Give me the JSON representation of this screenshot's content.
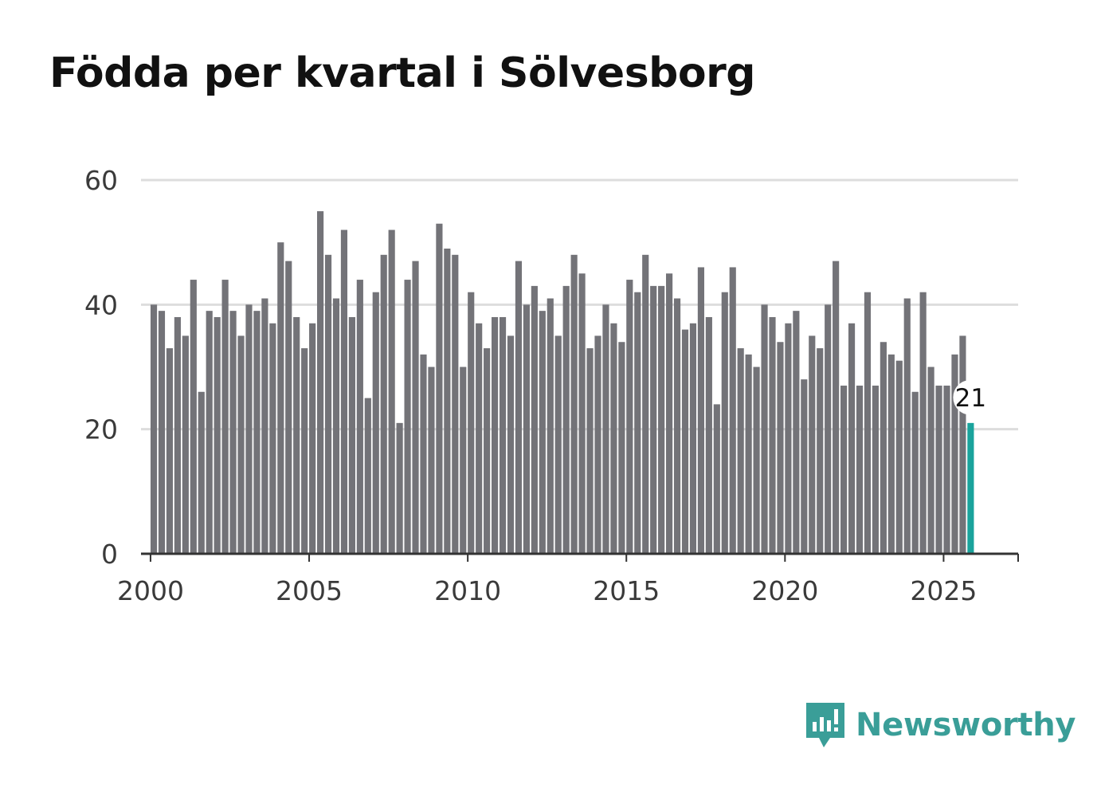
{
  "chart_data": {
    "type": "bar",
    "title": "Födda per kvartal i Sölvesborg",
    "xlabel": "",
    "ylabel": "",
    "period": "quarterly",
    "start": "2000 Q1",
    "end": "2025 Q4",
    "values": [
      40,
      39,
      33,
      38,
      35,
      44,
      26,
      39,
      38,
      44,
      39,
      35,
      40,
      39,
      41,
      37,
      50,
      47,
      38,
      33,
      37,
      55,
      48,
      41,
      52,
      38,
      44,
      25,
      42,
      48,
      52,
      21,
      44,
      47,
      32,
      30,
      53,
      49,
      48,
      30,
      42,
      37,
      33,
      38,
      38,
      35,
      47,
      40,
      43,
      39,
      41,
      35,
      43,
      48,
      45,
      33,
      35,
      40,
      37,
      34,
      44,
      42,
      48,
      43,
      43,
      45,
      41,
      36,
      37,
      46,
      38,
      24,
      42,
      46,
      33,
      32,
      30,
      40,
      38,
      34,
      37,
      39,
      28,
      35,
      33,
      40,
      47,
      27,
      37,
      27,
      42,
      27,
      34,
      32,
      31,
      41,
      26,
      42,
      30,
      27,
      27,
      32,
      35,
      21
    ],
    "ylim": [
      0,
      60
    ],
    "yticks": [
      0,
      20,
      40,
      60
    ],
    "xlim": [
      1999.7,
      2027.35
    ],
    "xticks": [
      2000,
      2005,
      2010,
      2015,
      2020,
      2025
    ],
    "xtick_labels": [
      "2000",
      "2005",
      "2010",
      "2015",
      "2020",
      "2025"
    ],
    "grid": true,
    "highlight": {
      "label": "21",
      "index": 103,
      "color": "#1aa39c"
    },
    "bar_color": "#737378",
    "grid_color": "#dddddd",
    "axis_color": "#333333"
  },
  "brand": {
    "name": "Newsworthy",
    "logo_icon": "newsworthy-chat-chart-icon",
    "color": "#3a9e98"
  }
}
